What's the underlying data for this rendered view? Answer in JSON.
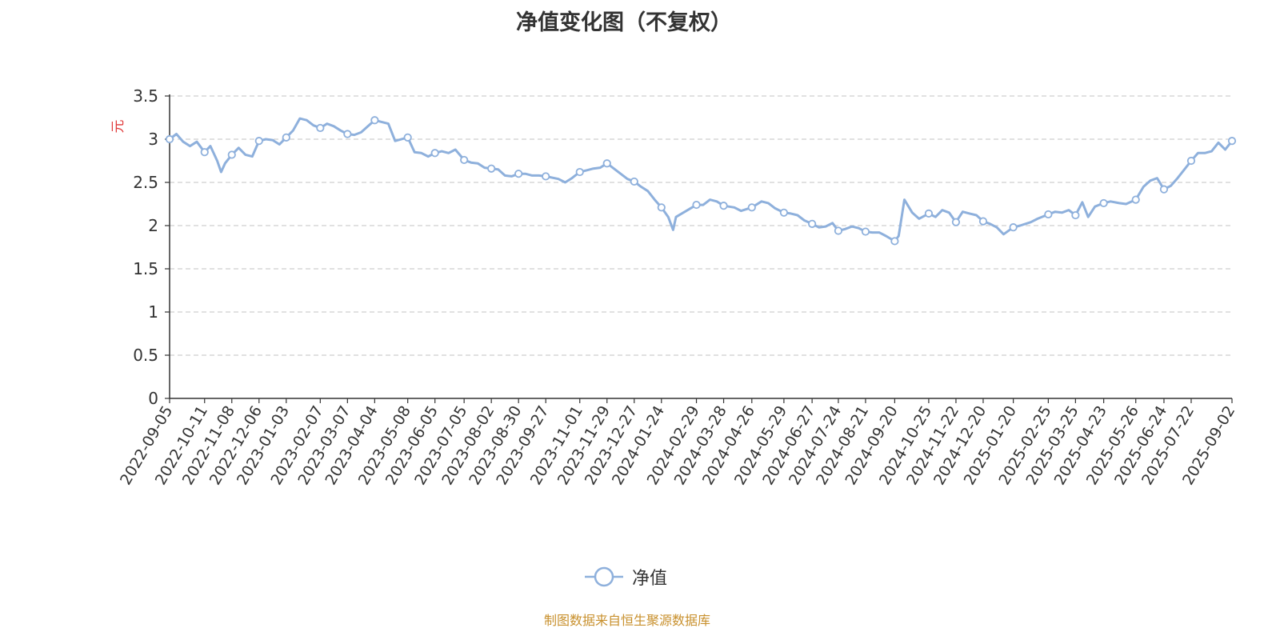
{
  "chart_data": {
    "type": "line",
    "title": "净值变化图（不复权）",
    "ylabel": "元",
    "xlabel": "",
    "ylim": [
      0,
      3.5
    ],
    "yticks": [
      "0",
      "0.5",
      "1",
      "1.5",
      "2",
      "2.5",
      "3",
      "3.5"
    ],
    "grid": true,
    "legend_position": "bottom-center",
    "categories": [
      "2022-09-05",
      "2022-10-11",
      "2022-11-08",
      "2022-12-06",
      "2023-01-03",
      "2023-02-07",
      "2023-03-07",
      "2023-04-04",
      "2023-05-08",
      "2023-06-05",
      "2023-07-05",
      "2023-08-02",
      "2023-08-30",
      "2023-09-27",
      "2023-11-01",
      "2023-11-29",
      "2023-12-27",
      "2024-01-24",
      "2024-02-29",
      "2024-03-28",
      "2024-04-26",
      "2024-05-29",
      "2024-06-27",
      "2024-07-24",
      "2024-08-21",
      "2024-09-20",
      "2024-10-25",
      "2024-11-22",
      "2024-12-20",
      "2025-01-20",
      "2025-02-25",
      "2025-03-25",
      "2025-04-23",
      "2025-05-26",
      "2025-06-24",
      "2025-07-22",
      "2025-09-02"
    ],
    "series": [
      {
        "name": "净值",
        "color": "#8eb0dc",
        "values": [
          3.0,
          2.85,
          2.82,
          2.98,
          3.02,
          3.13,
          3.06,
          3.22,
          3.02,
          2.84,
          2.76,
          2.66,
          2.6,
          2.57,
          2.62,
          2.72,
          2.51,
          2.21,
          2.24,
          2.23,
          2.21,
          2.15,
          2.02,
          1.94,
          1.93,
          1.82,
          2.14,
          2.04,
          2.05,
          1.98,
          2.13,
          2.12,
          2.26,
          2.3,
          2.42,
          2.75,
          2.98
        ]
      }
    ],
    "path_points": [
      [
        "2022-09-05",
        3.0
      ],
      [
        "2022-09-12",
        3.06
      ],
      [
        "2022-09-19",
        2.97
      ],
      [
        "2022-09-26",
        2.92
      ],
      [
        "2022-10-03",
        2.97
      ],
      [
        "2022-10-11",
        2.85
      ],
      [
        "2022-10-17",
        2.92
      ],
      [
        "2022-10-24",
        2.75
      ],
      [
        "2022-10-28",
        2.62
      ],
      [
        "2022-11-01",
        2.72
      ],
      [
        "2022-11-08",
        2.82
      ],
      [
        "2022-11-15",
        2.9
      ],
      [
        "2022-11-22",
        2.82
      ],
      [
        "2022-11-29",
        2.8
      ],
      [
        "2022-12-06",
        2.98
      ],
      [
        "2022-12-13",
        3.0
      ],
      [
        "2022-12-20",
        2.99
      ],
      [
        "2022-12-27",
        2.94
      ],
      [
        "2023-01-03",
        3.02
      ],
      [
        "2023-01-10",
        3.1
      ],
      [
        "2023-01-17",
        3.24
      ],
      [
        "2023-01-24",
        3.22
      ],
      [
        "2023-01-31",
        3.16
      ],
      [
        "2023-02-07",
        3.13
      ],
      [
        "2023-02-14",
        3.18
      ],
      [
        "2023-02-21",
        3.15
      ],
      [
        "2023-02-28",
        3.1
      ],
      [
        "2023-03-07",
        3.06
      ],
      [
        "2023-03-14",
        3.05
      ],
      [
        "2023-03-21",
        3.08
      ],
      [
        "2023-03-28",
        3.15
      ],
      [
        "2023-04-04",
        3.22
      ],
      [
        "2023-04-11",
        3.2
      ],
      [
        "2023-04-18",
        3.18
      ],
      [
        "2023-04-25",
        2.98
      ],
      [
        "2023-05-08",
        3.02
      ],
      [
        "2023-05-15",
        2.85
      ],
      [
        "2023-05-22",
        2.84
      ],
      [
        "2023-05-29",
        2.8
      ],
      [
        "2023-06-05",
        2.84
      ],
      [
        "2023-06-12",
        2.86
      ],
      [
        "2023-06-19",
        2.84
      ],
      [
        "2023-06-26",
        2.88
      ],
      [
        "2023-07-05",
        2.76
      ],
      [
        "2023-07-12",
        2.73
      ],
      [
        "2023-07-19",
        2.72
      ],
      [
        "2023-07-26",
        2.67
      ],
      [
        "2023-08-02",
        2.66
      ],
      [
        "2023-08-09",
        2.65
      ],
      [
        "2023-08-16",
        2.58
      ],
      [
        "2023-08-23",
        2.57
      ],
      [
        "2023-08-30",
        2.6
      ],
      [
        "2023-09-06",
        2.6
      ],
      [
        "2023-09-13",
        2.58
      ],
      [
        "2023-09-20",
        2.58
      ],
      [
        "2023-09-27",
        2.57
      ],
      [
        "2023-10-10",
        2.54
      ],
      [
        "2023-10-17",
        2.5
      ],
      [
        "2023-10-24",
        2.55
      ],
      [
        "2023-11-01",
        2.62
      ],
      [
        "2023-11-08",
        2.64
      ],
      [
        "2023-11-15",
        2.66
      ],
      [
        "2023-11-22",
        2.67
      ],
      [
        "2023-11-29",
        2.72
      ],
      [
        "2023-12-06",
        2.66
      ],
      [
        "2023-12-13",
        2.6
      ],
      [
        "2023-12-20",
        2.54
      ],
      [
        "2023-12-27",
        2.51
      ],
      [
        "2024-01-03",
        2.45
      ],
      [
        "2024-01-10",
        2.4
      ],
      [
        "2024-01-17",
        2.3
      ],
      [
        "2024-01-24",
        2.21
      ],
      [
        "2024-01-31",
        2.1
      ],
      [
        "2024-02-05",
        1.95
      ],
      [
        "2024-02-08",
        2.1
      ],
      [
        "2024-02-20",
        2.18
      ],
      [
        "2024-02-29",
        2.24
      ],
      [
        "2024-03-07",
        2.24
      ],
      [
        "2024-03-14",
        2.3
      ],
      [
        "2024-03-21",
        2.28
      ],
      [
        "2024-03-28",
        2.23
      ],
      [
        "2024-04-08",
        2.21
      ],
      [
        "2024-04-15",
        2.17
      ],
      [
        "2024-04-26",
        2.21
      ],
      [
        "2024-05-06",
        2.28
      ],
      [
        "2024-05-13",
        2.26
      ],
      [
        "2024-05-20",
        2.2
      ],
      [
        "2024-05-29",
        2.15
      ],
      [
        "2024-06-05",
        2.14
      ],
      [
        "2024-06-12",
        2.12
      ],
      [
        "2024-06-19",
        2.06
      ],
      [
        "2024-06-27",
        2.02
      ],
      [
        "2024-07-04",
        1.98
      ],
      [
        "2024-07-11",
        1.99
      ],
      [
        "2024-07-18",
        2.03
      ],
      [
        "2024-07-24",
        1.94
      ],
      [
        "2024-07-31",
        1.96
      ],
      [
        "2024-08-07",
        1.99
      ],
      [
        "2024-08-14",
        1.97
      ],
      [
        "2024-08-21",
        1.93
      ],
      [
        "2024-08-28",
        1.92
      ],
      [
        "2024-09-04",
        1.92
      ],
      [
        "2024-09-11",
        1.88
      ],
      [
        "2024-09-20",
        1.82
      ],
      [
        "2024-09-24",
        1.88
      ],
      [
        "2024-09-30",
        2.3
      ],
      [
        "2024-10-08",
        2.15
      ],
      [
        "2024-10-15",
        2.08
      ],
      [
        "2024-10-25",
        2.14
      ],
      [
        "2024-11-01",
        2.1
      ],
      [
        "2024-11-08",
        2.18
      ],
      [
        "2024-11-15",
        2.15
      ],
      [
        "2024-11-22",
        2.04
      ],
      [
        "2024-11-29",
        2.16
      ],
      [
        "2024-12-06",
        2.14
      ],
      [
        "2024-12-13",
        2.12
      ],
      [
        "2024-12-20",
        2.05
      ],
      [
        "2024-12-27",
        2.02
      ],
      [
        "2025-01-03",
        1.98
      ],
      [
        "2025-01-10",
        1.9
      ],
      [
        "2025-01-20",
        1.98
      ],
      [
        "2025-01-27",
        2.0
      ],
      [
        "2025-02-07",
        2.04
      ],
      [
        "2025-02-14",
        2.08
      ],
      [
        "2025-02-25",
        2.13
      ],
      [
        "2025-03-04",
        2.16
      ],
      [
        "2025-03-11",
        2.15
      ],
      [
        "2025-03-18",
        2.18
      ],
      [
        "2025-03-25",
        2.12
      ],
      [
        "2025-04-01",
        2.27
      ],
      [
        "2025-04-07",
        2.1
      ],
      [
        "2025-04-14",
        2.22
      ],
      [
        "2025-04-23",
        2.26
      ],
      [
        "2025-04-30",
        2.28
      ],
      [
        "2025-05-09",
        2.26
      ],
      [
        "2025-05-16",
        2.25
      ],
      [
        "2025-05-26",
        2.3
      ],
      [
        "2025-06-03",
        2.45
      ],
      [
        "2025-06-10",
        2.52
      ],
      [
        "2025-06-17",
        2.55
      ],
      [
        "2025-06-24",
        2.42
      ],
      [
        "2025-07-01",
        2.46
      ],
      [
        "2025-07-08",
        2.55
      ],
      [
        "2025-07-15",
        2.65
      ],
      [
        "2025-07-22",
        2.75
      ],
      [
        "2025-07-29",
        2.84
      ],
      [
        "2025-08-05",
        2.84
      ],
      [
        "2025-08-12",
        2.86
      ],
      [
        "2025-08-19",
        2.96
      ],
      [
        "2025-08-26",
        2.88
      ],
      [
        "2025-09-02",
        2.98
      ]
    ]
  },
  "legend": {
    "label": "净值",
    "marker": "circle-line-icon"
  },
  "footer": {
    "source": "制图数据来自恒生聚源数据库"
  }
}
